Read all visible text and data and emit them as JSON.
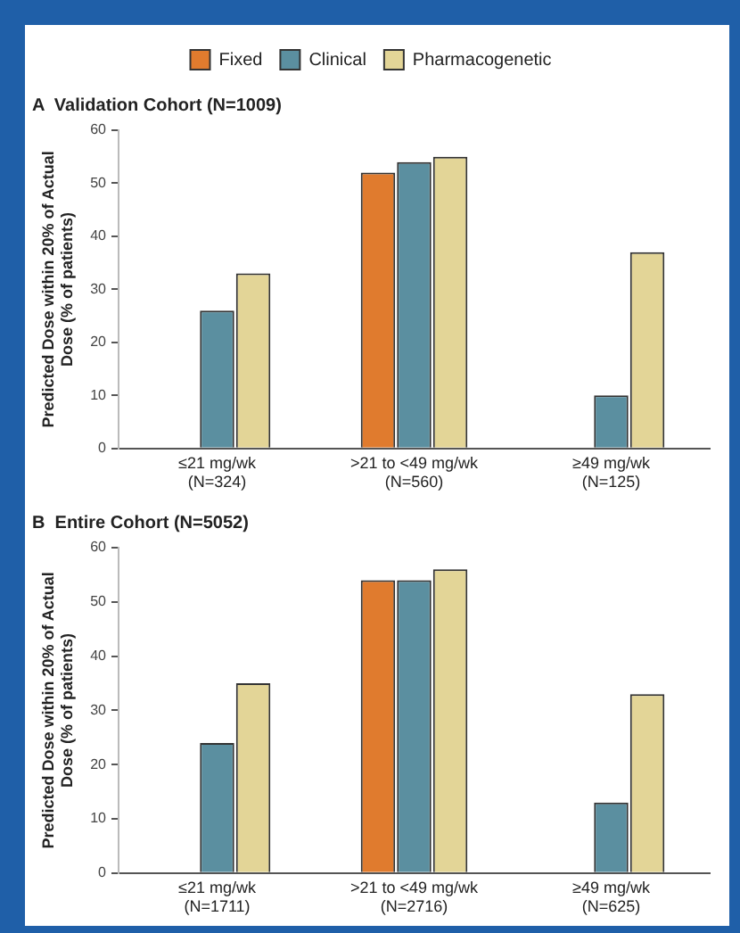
{
  "chart_data": [
    {
      "type": "bar",
      "title": "A  Validation Cohort (N=1009)",
      "ylabel": "Predicted Dose within 20% of Actual Dose (% of patients)",
      "categories": [
        "≤21 mg/wk\n(N=324)",
        ">21 to <49 mg/wk\n(N=560)",
        "≥49 mg/wk\n(N=125)"
      ],
      "series": [
        {
          "name": "Fixed",
          "color": "#e07b2e",
          "values": [
            0,
            52,
            0
          ]
        },
        {
          "name": "Clinical",
          "color": "#5b8fa0",
          "values": [
            26,
            54,
            10
          ]
        },
        {
          "name": "Pharmacogenetic",
          "color": "#e3d597",
          "values": [
            33,
            55,
            37
          ]
        }
      ],
      "ylim": [
        0,
        60
      ],
      "yticks": [
        0,
        10,
        20,
        30,
        40,
        50,
        60
      ],
      "grid": false,
      "legend": "top"
    },
    {
      "type": "bar",
      "title": "B  Entire Cohort (N=5052)",
      "ylabel": "Predicted Dose within 20% of Actual Dose (% of patients)",
      "categories": [
        "≤21 mg/wk\n(N=1711)",
        ">21 to <49 mg/wk\n(N=2716)",
        "≥49 mg/wk\n(N=625)"
      ],
      "series": [
        {
          "color": "#e07b2e",
          "values": [
            0,
            54,
            0
          ]
        },
        {
          "color": "#5b8fa0",
          "values": [
            24,
            54,
            13
          ]
        },
        {
          "color": "#e3d597",
          "values": [
            35,
            56,
            33
          ]
        }
      ],
      "ylim": [
        0,
        60
      ],
      "yticks": [
        0,
        10,
        20,
        30,
        40,
        50,
        60
      ],
      "grid": false,
      "legend": false
    }
  ]
}
